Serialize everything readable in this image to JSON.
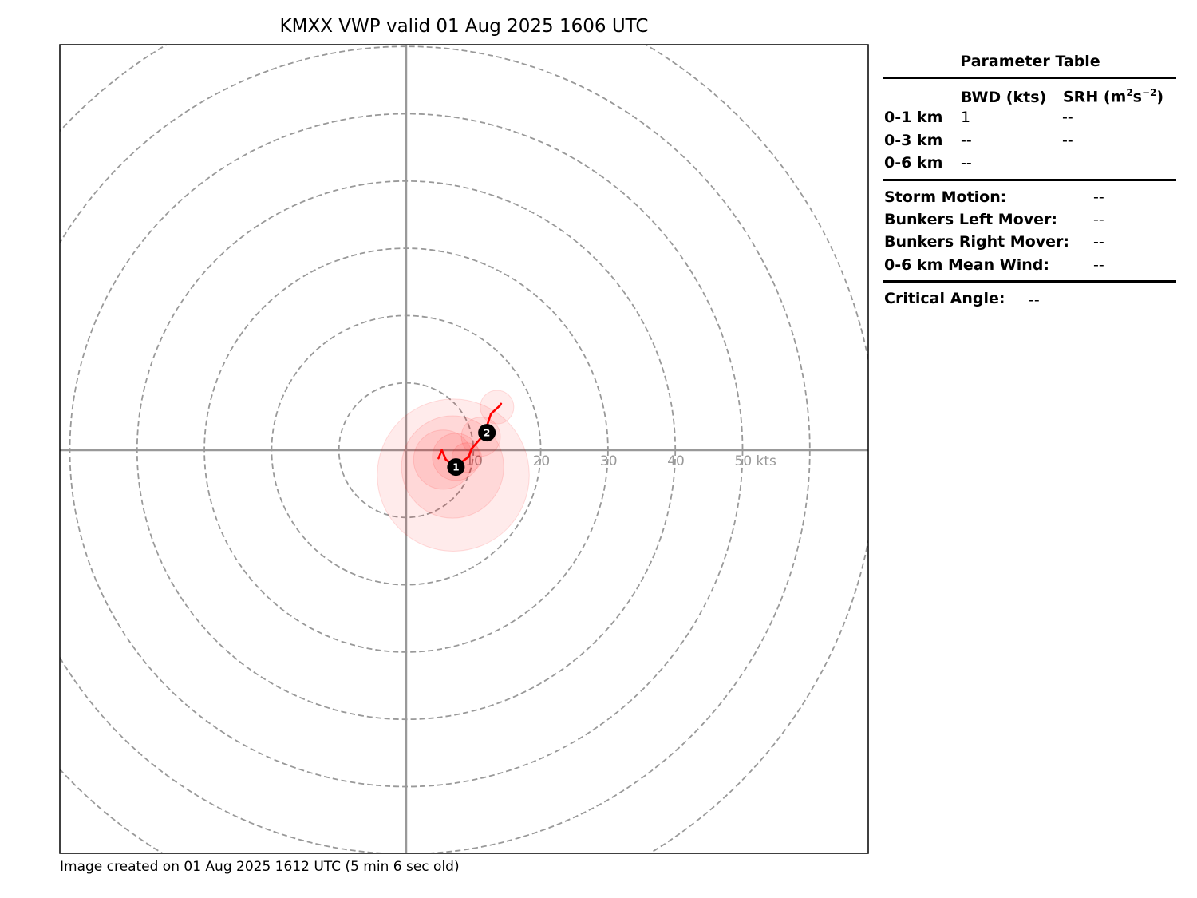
{
  "title": "KMXX VWP valid 01 Aug 2025 1606 UTC",
  "footer": "Image created on 01 Aug 2025 1612 UTC (5 min 6 sec old)",
  "chart_data": {
    "type": "hodograph",
    "units": "kts",
    "range_rings": [
      10,
      20,
      30,
      40,
      50,
      60,
      70
    ],
    "ring_labels": [
      "10",
      "20",
      "30",
      "40",
      "50 kts"
    ],
    "hodograph_trace": {
      "color": "#ff0000",
      "points": [
        {
          "u": 4.8,
          "v": -1.2
        },
        {
          "u": 5.3,
          "v": 0.0
        },
        {
          "u": 5.9,
          "v": -1.4
        },
        {
          "u": 7.3,
          "v": -2.4
        },
        {
          "u": 9.3,
          "v": -1.0
        },
        {
          "u": 9.7,
          "v": 0.2
        },
        {
          "u": 11.2,
          "v": 1.9
        },
        {
          "u": 12.0,
          "v": 3.6
        },
        {
          "u": 12.6,
          "v": 5.4
        },
        {
          "u": 13.9,
          "v": 6.6
        },
        {
          "u": 14.1,
          "v": 6.9
        }
      ]
    },
    "uncertainty_circles": [
      {
        "u": 7.0,
        "v": -3.7,
        "r": 11.3
      },
      {
        "u": 6.9,
        "v": -2.5,
        "r": 7.6
      },
      {
        "u": 5.5,
        "v": -1.4,
        "r": 4.4
      },
      {
        "u": 7.4,
        "v": -1.0,
        "r": 3.5
      },
      {
        "u": 9.0,
        "v": -1.1,
        "r": 2.2
      },
      {
        "u": 11.1,
        "v": 2.0,
        "r": 2.9
      },
      {
        "u": 13.5,
        "v": 6.4,
        "r": 2.5
      }
    ],
    "height_markers": [
      {
        "label": "1",
        "u": 7.4,
        "v": -2.5
      },
      {
        "label": "2",
        "u": 12.0,
        "v": 2.6
      }
    ]
  },
  "parameter_table": {
    "title": "Parameter Table",
    "col_bwd": "BWD (kts)",
    "col_srh_prefix": "SRH (m",
    "col_srh_sup1": "2",
    "col_srh_mid": "s",
    "col_srh_sup2": "−2",
    "col_srh_suffix": ")",
    "rows": [
      {
        "label": "0-1 km",
        "bwd": "1",
        "srh": "--"
      },
      {
        "label": "0-3 km",
        "bwd": "--",
        "srh": "--"
      },
      {
        "label": "0-6 km",
        "bwd": "--"
      }
    ],
    "storm_motion_label": "Storm Motion:",
    "storm_motion_value": "--",
    "bunkers_left_label": "Bunkers Left Mover:",
    "bunkers_left_value": "--",
    "bunkers_right_label": "Bunkers Right Mover:",
    "bunkers_right_value": "--",
    "mean_wind_label": "0-6 km Mean Wind:",
    "mean_wind_value": "--",
    "critical_angle_label": "Critical Angle:",
    "critical_angle_value": "--"
  }
}
